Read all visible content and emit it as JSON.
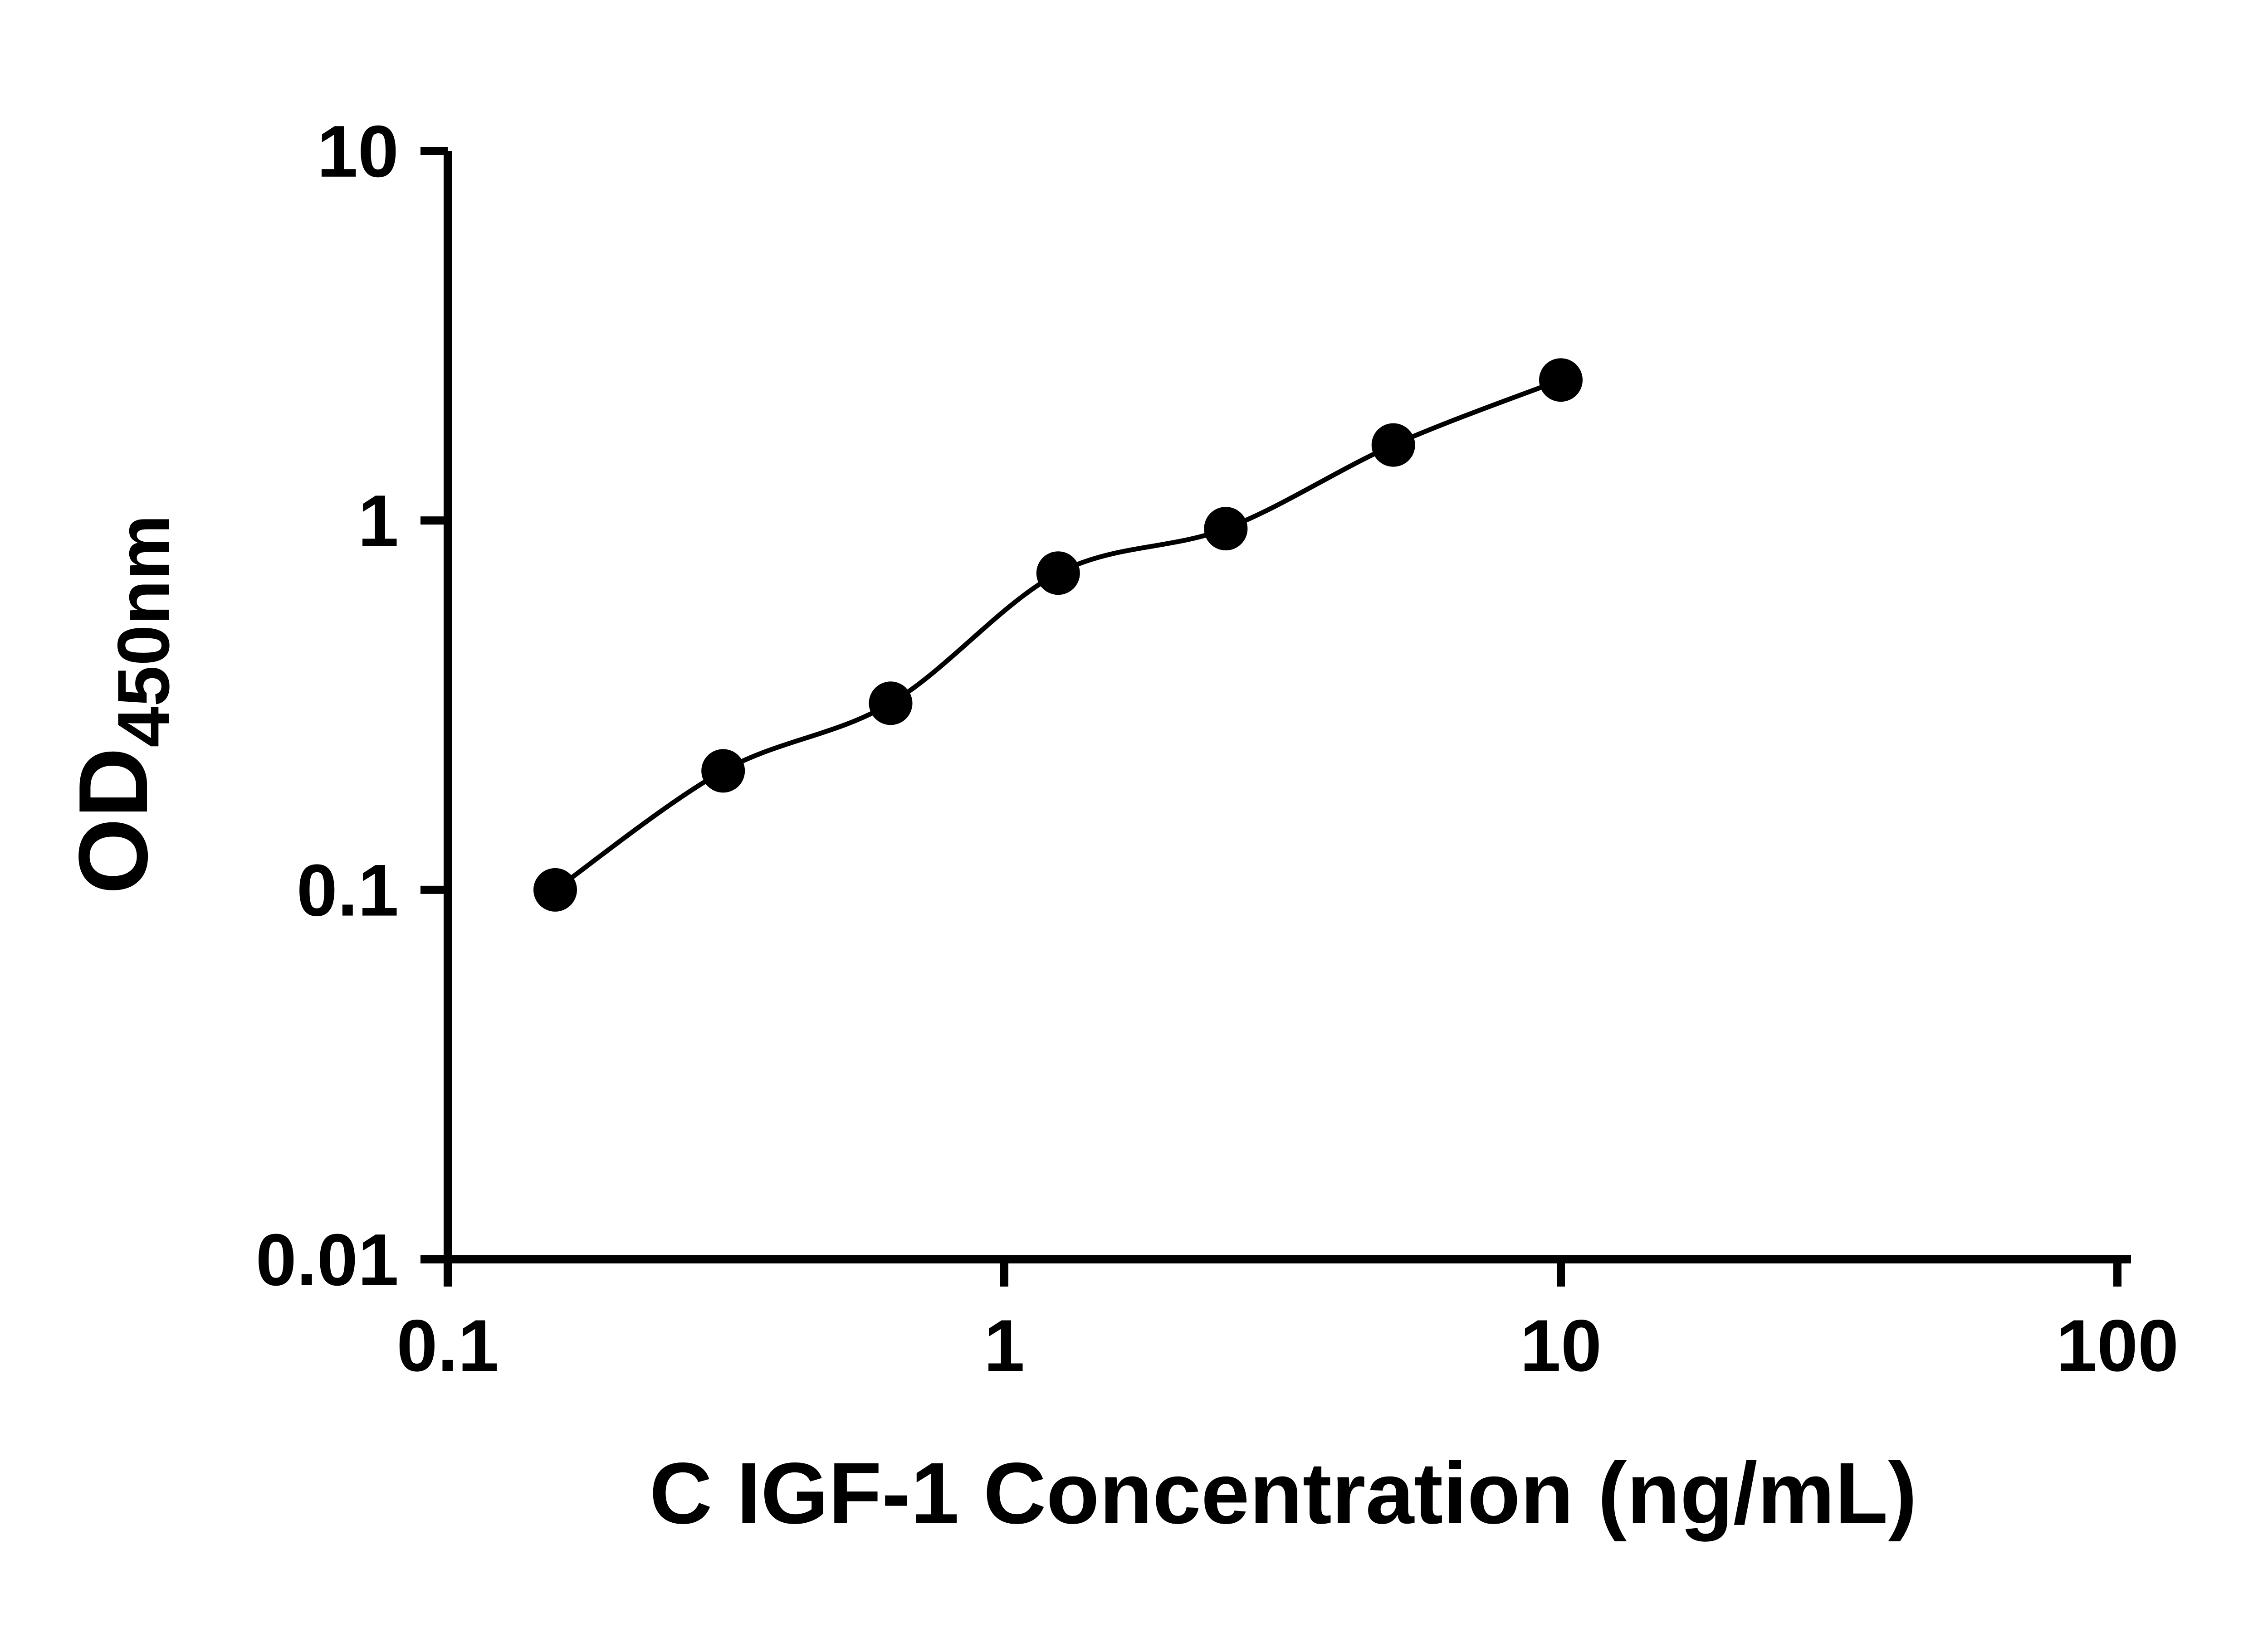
{
  "page": {
    "background": "#ffffff"
  },
  "chart_data": {
    "type": "scatter",
    "title": "",
    "xlabel": "C IGF-1 Concentration (ng/mL)",
    "ylabel": "OD",
    "ylabel_subscript": "450nm",
    "x_scale": "log",
    "y_scale": "log",
    "xlim": [
      0.1,
      100
    ],
    "ylim": [
      0.01,
      10
    ],
    "x_ticks": [
      0.1,
      1,
      10,
      100
    ],
    "x_tick_labels": [
      "0.1",
      "1",
      "10",
      "100"
    ],
    "y_ticks": [
      0.01,
      0.1,
      1,
      10
    ],
    "y_tick_labels": [
      "0.01",
      "0.1",
      "1",
      "10"
    ],
    "grid": false,
    "legend": false,
    "axis_color": "#000000",
    "background": "#ffffff",
    "series": [
      {
        "marker": "circle",
        "marker_color": "#000000",
        "line": "smooth",
        "line_color": "#000000",
        "points": [
          {
            "x": 0.156,
            "y": 0.1
          },
          {
            "x": 0.3125,
            "y": 0.21
          },
          {
            "x": 0.625,
            "y": 0.32
          },
          {
            "x": 1.25,
            "y": 0.72
          },
          {
            "x": 2.5,
            "y": 0.95
          },
          {
            "x": 5,
            "y": 1.6
          },
          {
            "x": 10,
            "y": 2.4
          }
        ]
      }
    ]
  }
}
